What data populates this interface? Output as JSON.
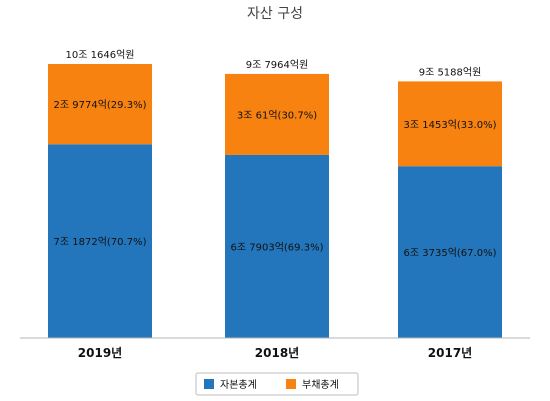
{
  "chart_data": {
    "type": "bar",
    "stacked": true,
    "title": "자산 구성",
    "categories": [
      "2019년",
      "2018년",
      "2017년"
    ],
    "totals": [
      101646,
      97964,
      95188
    ],
    "total_labels": [
      "10조 1646억원",
      "9조 7964억원",
      "9조 5188억원"
    ],
    "series": [
      {
        "name": "자본총계",
        "color": "#2376bb",
        "values": [
          71872,
          67903,
          63735
        ],
        "labels": [
          "7조 1872억(70.7%)",
          "6조 7903억(69.3%)",
          "6조 3735억(67.0%)"
        ]
      },
      {
        "name": "부채총계",
        "color": "#f7820f",
        "values": [
          29774,
          30061,
          31453
        ],
        "labels": [
          "2조 9774억(29.3%)",
          "3조 61억(30.7%)",
          "3조 1453억(33.0%)"
        ]
      }
    ],
    "ylim": [
      0,
      101646
    ],
    "grid": false,
    "legend": "bottom"
  }
}
